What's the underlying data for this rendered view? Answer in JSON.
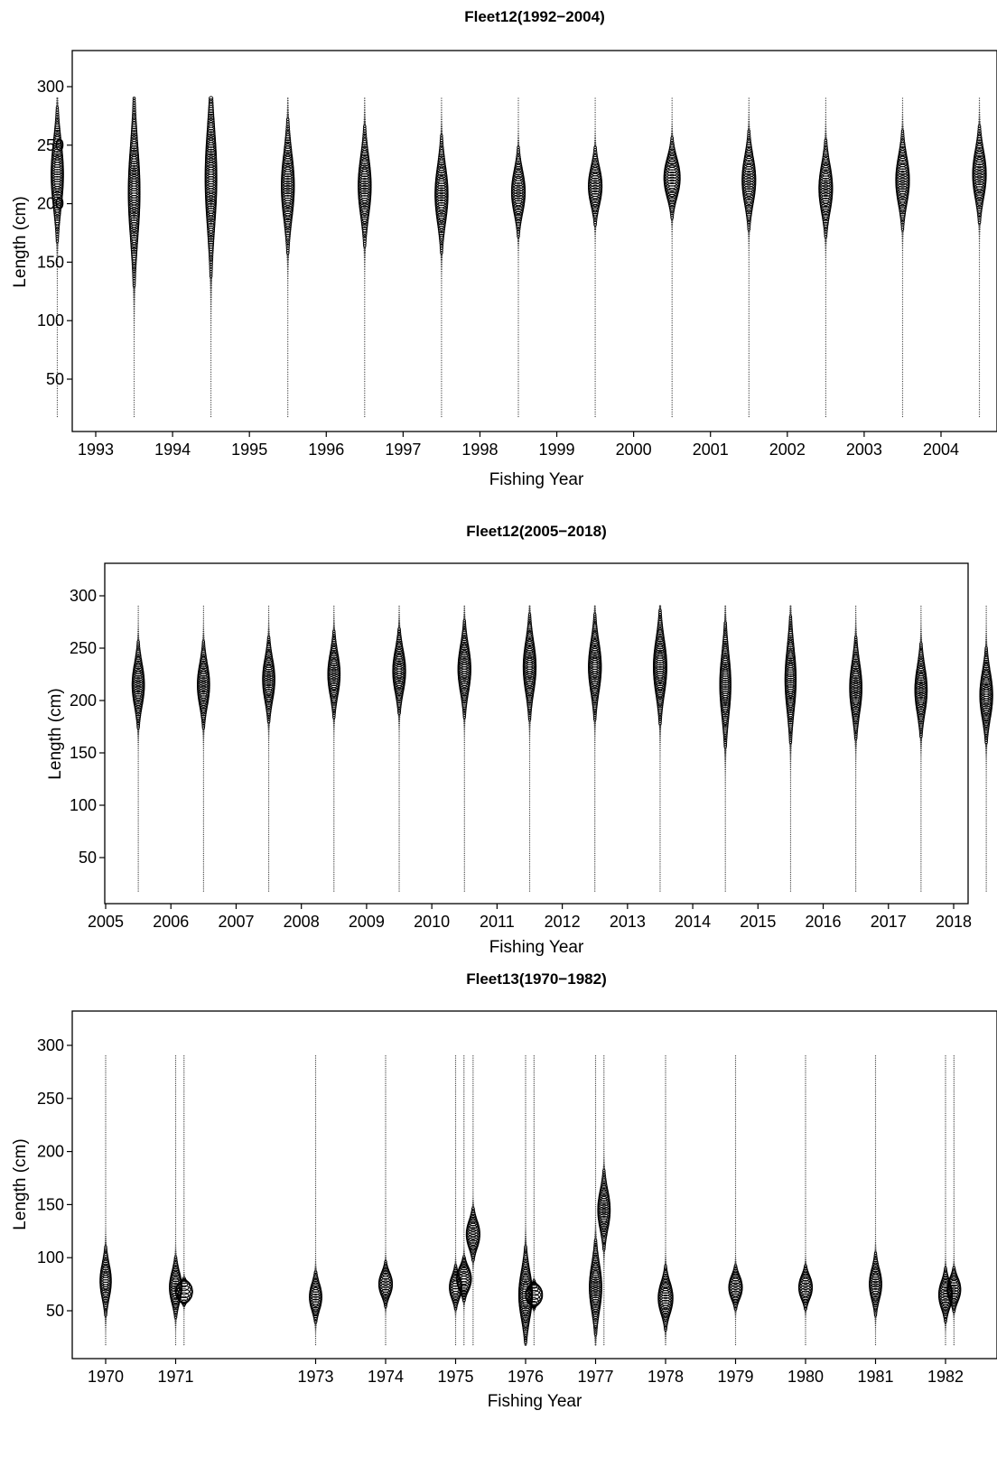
{
  "chart_data": [
    {
      "type": "scatter",
      "subtype": "bubble",
      "title": "Fleet12(1992−2004)",
      "xlabel": "Fishing Year",
      "ylabel": "Length (cm)",
      "ylim": [
        15,
        330
      ],
      "xlim": [
        1992.0,
        2004.75
      ],
      "y_ticks": [
        50,
        100,
        150,
        200,
        250,
        300
      ],
      "x_ticks": [
        1993,
        1994,
        1995,
        1996,
        1997,
        1998,
        1999,
        2000,
        2001,
        2002,
        2003,
        2004
      ],
      "grid": false,
      "length_bins_cm": {
        "from": 18,
        "to": 290,
        "step": 2
      },
      "samples": [
        {
          "x": 1992.5,
          "mode": 225,
          "spread": 28,
          "bubble": 0.9
        },
        {
          "x": 1993.5,
          "mode": 210,
          "spread": 40,
          "bubble": 0.85
        },
        {
          "x": 1994.5,
          "mode": 222,
          "spread": 42,
          "bubble": 0.85
        },
        {
          "x": 1995.5,
          "mode": 215,
          "spread": 28,
          "bubble": 0.95
        },
        {
          "x": 1996.5,
          "mode": 215,
          "spread": 25,
          "bubble": 0.95
        },
        {
          "x": 1997.5,
          "mode": 208,
          "spread": 24,
          "bubble": 0.95
        },
        {
          "x": 1998.5,
          "mode": 210,
          "spread": 18,
          "bubble": 1.0
        },
        {
          "x": 1999.5,
          "mode": 215,
          "spread": 16,
          "bubble": 1.0
        },
        {
          "x": 2000.5,
          "mode": 222,
          "spread": 16,
          "bubble": 1.2
        },
        {
          "x": 2001.5,
          "mode": 220,
          "spread": 20,
          "bubble": 1.0
        },
        {
          "x": 2002.5,
          "mode": 213,
          "spread": 20,
          "bubble": 1.0
        },
        {
          "x": 2003.5,
          "mode": 220,
          "spread": 20,
          "bubble": 1.0
        },
        {
          "x": 2004.5,
          "mode": 225,
          "spread": 20,
          "bubble": 1.0
        }
      ]
    },
    {
      "type": "scatter",
      "subtype": "bubble",
      "title": "Fleet12(2005−2018)",
      "xlabel": "Fishing Year",
      "ylabel": "Length (cm)",
      "ylim": [
        15,
        330
      ],
      "xlim": [
        2004.97,
        2018.85
      ],
      "y_ticks": [
        50,
        100,
        150,
        200,
        250,
        300
      ],
      "x_ticks": [
        2005,
        2006,
        2007,
        2008,
        2009,
        2010,
        2011,
        2012,
        2013,
        2014,
        2015,
        2016,
        2017,
        2018
      ],
      "grid": false,
      "length_bins_cm": {
        "from": 18,
        "to": 290,
        "step": 2
      },
      "samples": [
        {
          "x": 2005.5,
          "mode": 215,
          "spread": 20,
          "bubble": 1.0
        },
        {
          "x": 2006.5,
          "mode": 215,
          "spread": 20,
          "bubble": 1.0
        },
        {
          "x": 2007.5,
          "mode": 220,
          "spread": 20,
          "bubble": 1.0
        },
        {
          "x": 2008.5,
          "mode": 225,
          "spread": 20,
          "bubble": 1.0
        },
        {
          "x": 2009.5,
          "mode": 228,
          "spread": 20,
          "bubble": 1.05
        },
        {
          "x": 2010.5,
          "mode": 230,
          "spread": 22,
          "bubble": 1.05
        },
        {
          "x": 2011.5,
          "mode": 232,
          "spread": 24,
          "bubble": 1.05
        },
        {
          "x": 2012.5,
          "mode": 232,
          "spread": 24,
          "bubble": 1.05
        },
        {
          "x": 2013.5,
          "mode": 232,
          "spread": 26,
          "bubble": 1.1
        },
        {
          "x": 2014.5,
          "mode": 215,
          "spread": 30,
          "bubble": 0.9
        },
        {
          "x": 2015.5,
          "mode": 220,
          "spread": 30,
          "bubble": 0.9
        },
        {
          "x": 2016.5,
          "mode": 212,
          "spread": 24,
          "bubble": 1.0
        },
        {
          "x": 2017.5,
          "mode": 210,
          "spread": 22,
          "bubble": 1.0
        },
        {
          "x": 2018.5,
          "mode": 205,
          "spread": 22,
          "bubble": 1.05
        }
      ]
    },
    {
      "type": "scatter",
      "subtype": "bubble",
      "title": "Fleet13(1970−1982)",
      "xlabel": "Fishing Year",
      "ylabel": "Length (cm)",
      "ylim": [
        15,
        330
      ],
      "xlim": [
        1969.55,
        1982.5
      ],
      "y_ticks": [
        50,
        100,
        150,
        200,
        250,
        300
      ],
      "x_ticks": [
        1970,
        1971,
        1973,
        1974,
        1975,
        1976,
        1977,
        1978,
        1979,
        1980,
        1981,
        1982
      ],
      "grid": false,
      "length_bins_cm": {
        "from": 18,
        "to": 290,
        "step": 2
      },
      "samples": [
        {
          "x": 1970.0,
          "mode": 78,
          "spread": 16,
          "bubble": 0.9
        },
        {
          "x": 1971.0,
          "mode": 72,
          "spread": 14,
          "bubble": 1.0
        },
        {
          "x": 1971.12,
          "mode": 68,
          "spread": 6,
          "bubble": 1.4
        },
        {
          "x": 1973.0,
          "mode": 63,
          "spread": 12,
          "bubble": 1.0
        },
        {
          "x": 1974.0,
          "mode": 75,
          "spread": 10,
          "bubble": 1.1
        },
        {
          "x": 1975.0,
          "mode": 72,
          "spread": 10,
          "bubble": 1.0
        },
        {
          "x": 1975.12,
          "mode": 80,
          "spread": 10,
          "bubble": 1.2
        },
        {
          "x": 1975.25,
          "mode": 122,
          "spread": 12,
          "bubble": 1.1
        },
        {
          "x": 1976.0,
          "mode": 65,
          "spread": 22,
          "bubble": 1.1
        },
        {
          "x": 1976.12,
          "mode": 65,
          "spread": 6,
          "bubble": 1.4
        },
        {
          "x": 1977.0,
          "mode": 72,
          "spread": 22,
          "bubble": 1.0
        },
        {
          "x": 1977.12,
          "mode": 145,
          "spread": 18,
          "bubble": 1.0
        },
        {
          "x": 1978.0,
          "mode": 62,
          "spread": 14,
          "bubble": 1.2
        },
        {
          "x": 1979.0,
          "mode": 72,
          "spread": 10,
          "bubble": 1.1
        },
        {
          "x": 1980.0,
          "mode": 72,
          "spread": 10,
          "bubble": 1.1
        },
        {
          "x": 1981.0,
          "mode": 75,
          "spread": 14,
          "bubble": 1.0
        },
        {
          "x": 1982.0,
          "mode": 65,
          "spread": 12,
          "bubble": 1.1
        },
        {
          "x": 1982.12,
          "mode": 70,
          "spread": 10,
          "bubble": 1.1
        }
      ]
    }
  ]
}
